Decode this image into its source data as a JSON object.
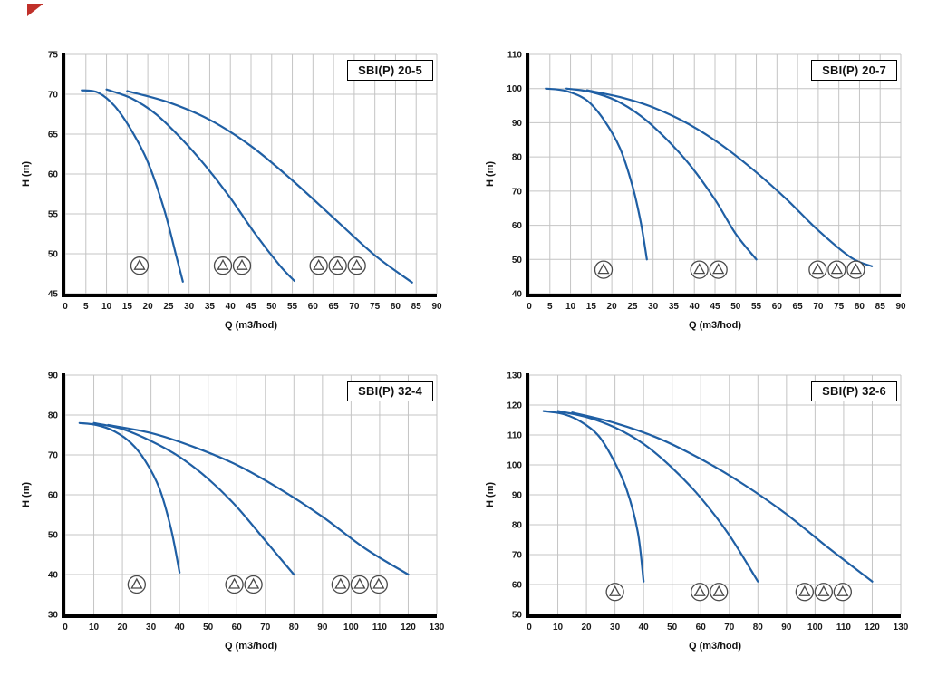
{
  "page": {
    "background": "#ffffff",
    "corner_mark_color": "#c0302a"
  },
  "style": {
    "curve_color": "#1f5fa4",
    "grid_color": "#c4c4c4",
    "axis_color": "#000000",
    "tick_color": "#1a1a1a",
    "icon_stroke": "#4a4a4a"
  },
  "chart_data": [
    {
      "type": "line",
      "title": "SBI(P) 20-5",
      "xlabel": "Q (m3/hod)",
      "ylabel": "H (m)",
      "xlim": [
        0,
        90
      ],
      "xtick": 5,
      "ylim": [
        45,
        75
      ],
      "ytick": 5,
      "grid": true,
      "series": [
        {
          "name": "1-pump-curve",
          "points": [
            [
              4,
              70.5
            ],
            [
              8,
              70.2
            ],
            [
              12,
              68.5
            ],
            [
              16,
              65.5
            ],
            [
              20,
              61.5
            ],
            [
              24,
              55.5
            ],
            [
              27,
              49.5
            ],
            [
              28.5,
              46.5
            ]
          ]
        },
        {
          "name": "2-pumps-curve",
          "points": [
            [
              10,
              70.6
            ],
            [
              16,
              69.5
            ],
            [
              22,
              67.5
            ],
            [
              28,
              64.5
            ],
            [
              34,
              61
            ],
            [
              40,
              57
            ],
            [
              46,
              52.5
            ],
            [
              52,
              48.5
            ],
            [
              55.5,
              46.6
            ]
          ]
        },
        {
          "name": "3-pumps-curve",
          "points": [
            [
              15,
              70.4
            ],
            [
              25,
              69
            ],
            [
              35,
              66.8
            ],
            [
              45,
              63.5
            ],
            [
              55,
              59.2
            ],
            [
              65,
              54.5
            ],
            [
              75,
              49.8
            ],
            [
              84,
              46.4
            ]
          ]
        }
      ],
      "pump_groups": [
        {
          "count": 1,
          "x": 18,
          "y": 48.5
        },
        {
          "count": 2,
          "x": 40.5,
          "y": 48.5
        },
        {
          "count": 3,
          "x": 66,
          "y": 48.5
        }
      ]
    },
    {
      "type": "line",
      "title": "SBI(P) 20-7",
      "xlabel": "Q (m3/hod)",
      "ylabel": "H (m)",
      "xlim": [
        0,
        90
      ],
      "xtick": 5,
      "ylim": [
        40,
        110
      ],
      "ytick": 10,
      "grid": true,
      "series": [
        {
          "name": "1-pump-curve",
          "points": [
            [
              4,
              100
            ],
            [
              9,
              99.3
            ],
            [
              14,
              96.5
            ],
            [
              18,
              91
            ],
            [
              22,
              82.5
            ],
            [
              25,
              71.5
            ],
            [
              27,
              61
            ],
            [
              28.5,
              50
            ]
          ]
        },
        {
          "name": "2-pumps-curve",
          "points": [
            [
              9,
              100
            ],
            [
              15,
              99
            ],
            [
              21,
              96.5
            ],
            [
              27,
              92
            ],
            [
              33,
              85.5
            ],
            [
              39,
              77.5
            ],
            [
              45,
              67.5
            ],
            [
              50,
              57.5
            ],
            [
              55,
              50
            ]
          ]
        },
        {
          "name": "3-pumps-curve",
          "points": [
            [
              14,
              99.5
            ],
            [
              22,
              97.5
            ],
            [
              30,
              94.5
            ],
            [
              38,
              90
            ],
            [
              46,
              84
            ],
            [
              54,
              76.5
            ],
            [
              62,
              68
            ],
            [
              70,
              58.5
            ],
            [
              78,
              50.5
            ],
            [
              83,
              48
            ]
          ]
        }
      ],
      "pump_groups": [
        {
          "count": 1,
          "x": 18,
          "y": 47
        },
        {
          "count": 2,
          "x": 43.5,
          "y": 47
        },
        {
          "count": 3,
          "x": 74.5,
          "y": 47
        }
      ]
    },
    {
      "type": "line",
      "title": "SBI(P) 32-4",
      "xlabel": "Q (m3/hod)",
      "ylabel": "H (m)",
      "xlim": [
        0,
        130
      ],
      "xtick": 10,
      "ylim": [
        30,
        90
      ],
      "ytick": 10,
      "grid": true,
      "series": [
        {
          "name": "1-pump-curve",
          "points": [
            [
              5,
              78
            ],
            [
              11,
              77.5
            ],
            [
              17,
              76
            ],
            [
              23,
              73
            ],
            [
              28,
              68.5
            ],
            [
              33,
              61.5
            ],
            [
              37,
              51.5
            ],
            [
              40,
              40.5
            ]
          ]
        },
        {
          "name": "2-pumps-curve",
          "points": [
            [
              10,
              78
            ],
            [
              20,
              76.5
            ],
            [
              30,
              73.5
            ],
            [
              40,
              69.5
            ],
            [
              50,
              64
            ],
            [
              60,
              57
            ],
            [
              70,
              48.5
            ],
            [
              80,
              40
            ]
          ]
        },
        {
          "name": "3-pumps-curve",
          "points": [
            [
              15,
              77.5
            ],
            [
              30,
              75.5
            ],
            [
              45,
              72
            ],
            [
              60,
              67.5
            ],
            [
              75,
              61.5
            ],
            [
              90,
              54.5
            ],
            [
              105,
              46.5
            ],
            [
              120,
              40
            ]
          ]
        }
      ],
      "pump_groups": [
        {
          "count": 1,
          "x": 25,
          "y": 37.5
        },
        {
          "count": 2,
          "x": 62.5,
          "y": 37.5
        },
        {
          "count": 3,
          "x": 103,
          "y": 37.5
        }
      ]
    },
    {
      "type": "line",
      "title": "SBI(P) 32-6",
      "xlabel": "Q (m3/hod)",
      "ylabel": "H (m)",
      "xlim": [
        0,
        130
      ],
      "xtick": 10,
      "ylim": [
        50,
        130
      ],
      "ytick": 10,
      "grid": true,
      "series": [
        {
          "name": "1-pump-curve",
          "points": [
            [
              5,
              118
            ],
            [
              12,
              117
            ],
            [
              18,
              114.5
            ],
            [
              24,
              110
            ],
            [
              29,
              102.5
            ],
            [
              34,
              92
            ],
            [
              38,
              77.5
            ],
            [
              40,
              61
            ]
          ]
        },
        {
          "name": "2-pumps-curve",
          "points": [
            [
              10,
              118
            ],
            [
              20,
              116
            ],
            [
              30,
              112.5
            ],
            [
              40,
              107
            ],
            [
              50,
              99
            ],
            [
              60,
              89
            ],
            [
              70,
              76.5
            ],
            [
              80,
              61
            ]
          ]
        },
        {
          "name": "3-pumps-curve",
          "points": [
            [
              15,
              117.5
            ],
            [
              30,
              114
            ],
            [
              45,
              109
            ],
            [
              60,
              102
            ],
            [
              75,
              93.5
            ],
            [
              90,
              83.5
            ],
            [
              105,
              72
            ],
            [
              120,
              61
            ]
          ]
        }
      ],
      "pump_groups": [
        {
          "count": 1,
          "x": 30,
          "y": 57.5
        },
        {
          "count": 2,
          "x": 63,
          "y": 57.5
        },
        {
          "count": 3,
          "x": 103,
          "y": 57.5
        }
      ]
    }
  ]
}
